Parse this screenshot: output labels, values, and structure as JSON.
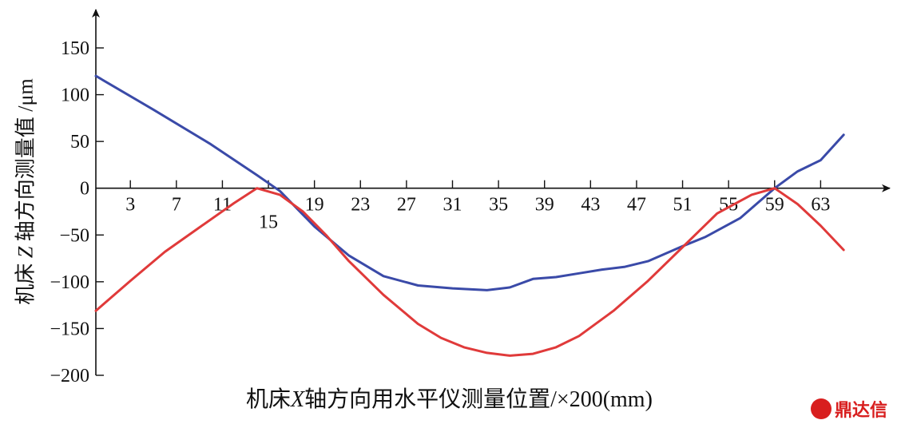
{
  "chart_data": {
    "type": "line",
    "title": "",
    "xlabel_prefix": "机床",
    "xlabel_var": "X",
    "xlabel_suffix": "轴方向用水平仪测量位置/×200(mm)",
    "ylabel_prefix": "机床 ",
    "ylabel_var": "Z",
    "ylabel_suffix": " 轴方向测量值 /μm",
    "xlim": [
      0,
      67
    ],
    "ylim": [
      -200,
      150
    ],
    "xticks": [
      3,
      7,
      11,
      15,
      19,
      23,
      27,
      31,
      35,
      39,
      43,
      47,
      51,
      55,
      59,
      63
    ],
    "yticks": [
      150,
      100,
      50,
      0,
      -50,
      -100,
      -150,
      -200
    ],
    "ytick_labels": [
      "150",
      "100",
      "50",
      "0",
      "−50",
      "−100",
      "−150",
      "−200"
    ],
    "grid": false,
    "series": [
      {
        "color": "#3a4aa8",
        "x": [
          0,
          5,
          10,
          14,
          16,
          19,
          22,
          25,
          28,
          31,
          34,
          36,
          38,
          40,
          42,
          44,
          46,
          48,
          51,
          53,
          56,
          59,
          61,
          63,
          65
        ],
        "y": [
          120,
          84,
          47,
          14,
          -3,
          -41,
          -72,
          -94,
          -104,
          -107,
          -109,
          -106,
          -97,
          -95,
          -91,
          -87,
          -84,
          -78,
          -62,
          -52,
          -32,
          0,
          18,
          30,
          57
        ]
      },
      {
        "color": "#e03a3a",
        "x": [
          0,
          3,
          6,
          9,
          12,
          14,
          16,
          18,
          20,
          22,
          25,
          28,
          30,
          32,
          34,
          36,
          38,
          40,
          42,
          45,
          48,
          51,
          54,
          57,
          59,
          61,
          63,
          65
        ],
        "y": [
          -131,
          -99,
          -68,
          -42,
          -16,
          0,
          -7,
          -25,
          -50,
          -78,
          -114,
          -145,
          -160,
          -170,
          -176,
          -179,
          -177,
          -170,
          -158,
          -131,
          -99,
          -63,
          -27,
          -7,
          0,
          -17,
          -40,
          -66
        ]
      }
    ]
  },
  "watermark": {
    "logo": "NS",
    "text": "鼎达信"
  }
}
